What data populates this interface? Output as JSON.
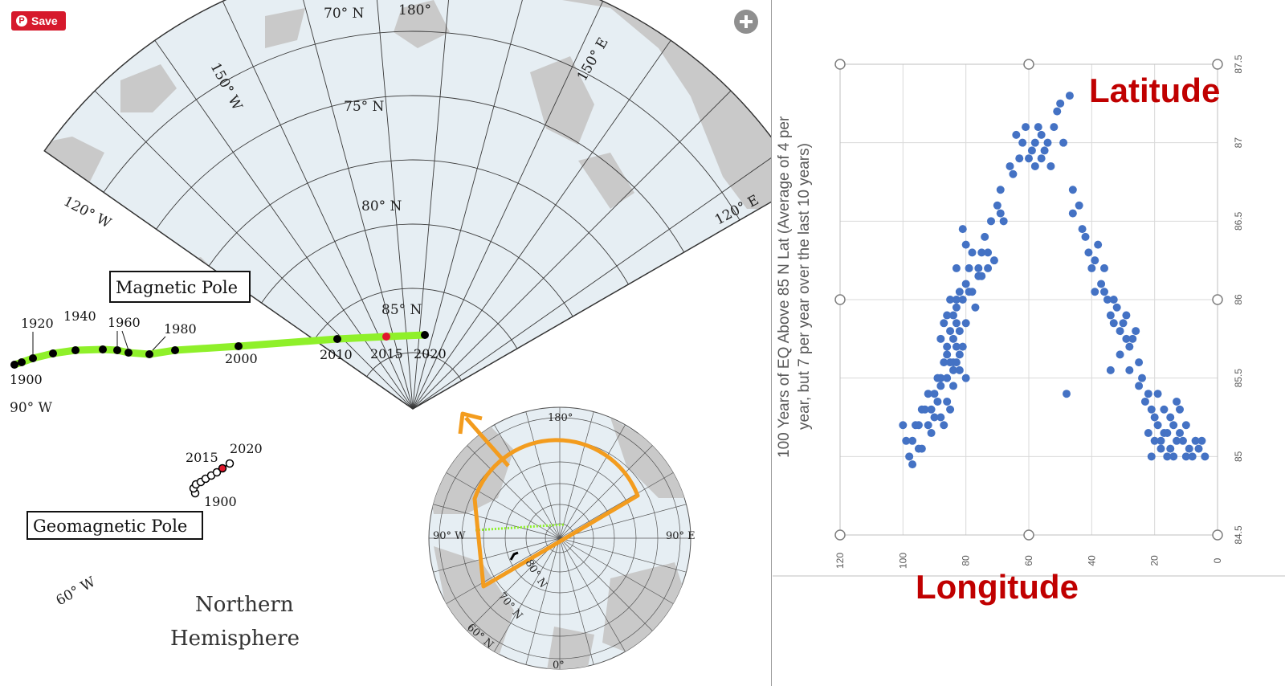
{
  "pin_button": {
    "label": "Save"
  },
  "map": {
    "title_line1": "Northern",
    "title_line2": "Hemisphere",
    "colors": {
      "ocean": "#e6eef3",
      "land": "#c9c9c9",
      "track": "#8ff02a",
      "highlight": "#e0162b"
    },
    "meridian_labels": [
      "70° N",
      "180°",
      "150° W",
      "150° E",
      "75° N",
      "120° W",
      "80° N",
      "120° E",
      "85° N",
      "90° W",
      "60° W"
    ],
    "magnetic_pole": {
      "label": "Magnetic Pole",
      "year_labels": [
        "1900",
        "1920",
        "1940",
        "1960",
        "1980",
        "2000",
        "2010",
        "2015",
        "2020"
      ]
    },
    "geomagnetic_pole": {
      "label": "Geomagnetic Pole",
      "year_labels": [
        "2015",
        "2020",
        "1900"
      ]
    },
    "inset": {
      "labels": [
        "180°",
        "90° W",
        "90° E",
        "80° N",
        "70° N",
        "60° N",
        "0°"
      ]
    }
  },
  "chart_data": {
    "type": "scatter",
    "ylabel_line1": "100 Years of EQ Above 85 N Lat (Average of 4 per",
    "ylabel_line2": "year, but 7 per year over the last 10 years)",
    "series_label": "Latitude",
    "xlabel": "Longitude",
    "x_axis": {
      "reversed": true,
      "min": 0,
      "max": 120,
      "ticks": [
        "120",
        "100",
        "80",
        "60",
        "40",
        "20",
        "0"
      ]
    },
    "y_axis": {
      "min": 84.5,
      "max": 87.5,
      "ticks": [
        "87.5",
        "87",
        "86.5",
        "86",
        "85.5",
        "85",
        "84.5"
      ],
      "side": "right"
    },
    "grid": true,
    "marker_color": "#4472c4",
    "label_color": "#c00000",
    "points": [
      [
        100,
        85.2
      ],
      [
        99,
        85.1
      ],
      [
        98,
        85
      ],
      [
        97,
        85.1
      ],
      [
        96,
        85.2
      ],
      [
        95,
        85.2
      ],
      [
        94,
        85.3
      ],
      [
        93,
        85.3
      ],
      [
        92,
        85.4
      ],
      [
        91,
        85.3
      ],
      [
        90,
        85.4
      ],
      [
        89,
        85.5
      ],
      [
        88,
        85.5
      ],
      [
        87,
        85.6
      ],
      [
        86,
        85.7
      ],
      [
        86,
        85.5
      ],
      [
        85,
        85.8
      ],
      [
        84,
        85.9
      ],
      [
        84,
        85.6
      ],
      [
        83,
        86
      ],
      [
        82,
        85.8
      ],
      [
        83,
        86.2
      ],
      [
        81,
        86
      ],
      [
        80,
        86.1
      ],
      [
        79,
        86.2
      ],
      [
        78,
        86.3
      ],
      [
        76,
        86.2
      ],
      [
        75,
        86.3
      ],
      [
        74,
        86.4
      ],
      [
        73,
        86.3
      ],
      [
        72,
        86.5
      ],
      [
        70,
        86.6
      ],
      [
        68,
        86.5
      ],
      [
        69,
        86.7
      ],
      [
        65,
        86.8
      ],
      [
        63,
        86.9
      ],
      [
        62,
        87
      ],
      [
        61,
        87.1
      ],
      [
        60,
        86.9
      ],
      [
        59,
        86.95
      ],
      [
        58,
        87
      ],
      [
        57,
        87.1
      ],
      [
        56,
        86.9
      ],
      [
        55,
        86.95
      ],
      [
        54,
        87
      ],
      [
        53,
        86.85
      ],
      [
        51,
        87.2
      ],
      [
        50,
        87.25
      ],
      [
        49,
        87
      ],
      [
        47,
        87.3
      ],
      [
        46,
        86.7
      ],
      [
        44,
        86.6
      ],
      [
        42,
        86.4
      ],
      [
        41,
        86.3
      ],
      [
        40,
        86.2
      ],
      [
        39,
        86.25
      ],
      [
        38,
        86.35
      ],
      [
        37,
        86.1
      ],
      [
        36,
        86.2
      ],
      [
        35,
        86
      ],
      [
        34,
        85.9
      ],
      [
        33,
        86
      ],
      [
        32,
        85.95
      ],
      [
        31,
        85.8
      ],
      [
        30,
        85.85
      ],
      [
        29,
        85.9
      ],
      [
        28,
        85.7
      ],
      [
        27,
        85.75
      ],
      [
        26,
        85.8
      ],
      [
        25,
        85.6
      ],
      [
        24,
        85.5
      ],
      [
        22,
        85.4
      ],
      [
        21,
        85.3
      ],
      [
        20,
        85.25
      ],
      [
        19,
        85.2
      ],
      [
        18,
        85.1
      ],
      [
        17,
        85.15
      ],
      [
        16,
        85
      ],
      [
        15,
        85.05
      ],
      [
        14,
        85
      ],
      [
        13,
        85.1
      ],
      [
        12,
        85.15
      ],
      [
        10,
        85.2
      ],
      [
        9,
        85.05
      ],
      [
        8,
        85
      ],
      [
        6,
        85.05
      ],
      [
        5,
        85.1
      ],
      [
        4,
        85
      ],
      [
        21,
        85
      ],
      [
        48,
        85.4
      ],
      [
        34,
        85.55
      ],
      [
        81,
        86.45
      ],
      [
        87,
        85.2
      ],
      [
        85,
        85.3
      ],
      [
        88,
        85.45
      ],
      [
        84,
        85.75
      ],
      [
        82,
        85.65
      ],
      [
        86,
        85.9
      ],
      [
        80,
        85.85
      ],
      [
        91,
        85.15
      ],
      [
        94,
        85.05
      ],
      [
        97,
        84.95
      ],
      [
        78,
        86.05
      ],
      [
        76,
        86.15
      ],
      [
        88,
        85.25
      ],
      [
        87,
        85.85
      ],
      [
        85,
        86
      ],
      [
        83,
        85.95
      ],
      [
        89,
        85.35
      ],
      [
        90,
        85.25
      ],
      [
        92,
        85.2
      ],
      [
        95,
        85.05
      ],
      [
        86,
        85.35
      ],
      [
        84,
        85.45
      ],
      [
        83,
        85.6
      ],
      [
        82,
        85.55
      ],
      [
        81,
        85.7
      ],
      [
        80,
        85.5
      ],
      [
        88,
        85.75
      ],
      [
        86,
        85.65
      ],
      [
        85,
        85.6
      ],
      [
        84,
        85.55
      ],
      [
        83,
        85.7
      ],
      [
        83,
        85.85
      ],
      [
        82,
        86.05
      ],
      [
        80,
        86.35
      ],
      [
        79,
        86.05
      ],
      [
        77,
        85.95
      ],
      [
        75,
        86.15
      ],
      [
        73,
        86.2
      ],
      [
        71,
        86.25
      ],
      [
        69,
        86.55
      ],
      [
        66,
        86.85
      ],
      [
        64,
        87.05
      ],
      [
        58,
        86.85
      ],
      [
        56,
        87.05
      ],
      [
        52,
        87.1
      ],
      [
        46,
        86.55
      ],
      [
        43,
        86.45
      ],
      [
        39,
        86.05
      ],
      [
        36,
        86.05
      ],
      [
        33,
        85.85
      ],
      [
        31,
        85.65
      ],
      [
        29,
        85.75
      ],
      [
        28,
        85.55
      ],
      [
        25,
        85.45
      ],
      [
        23,
        85.35
      ],
      [
        22,
        85.15
      ],
      [
        20,
        85.1
      ],
      [
        18,
        85.05
      ],
      [
        16,
        85.15
      ],
      [
        14,
        85.2
      ],
      [
        12,
        85.3
      ],
      [
        11,
        85.1
      ],
      [
        10,
        85
      ],
      [
        7,
        85.1
      ],
      [
        19,
        85.4
      ],
      [
        17,
        85.3
      ],
      [
        15,
        85.25
      ],
      [
        13,
        85.35
      ]
    ]
  }
}
